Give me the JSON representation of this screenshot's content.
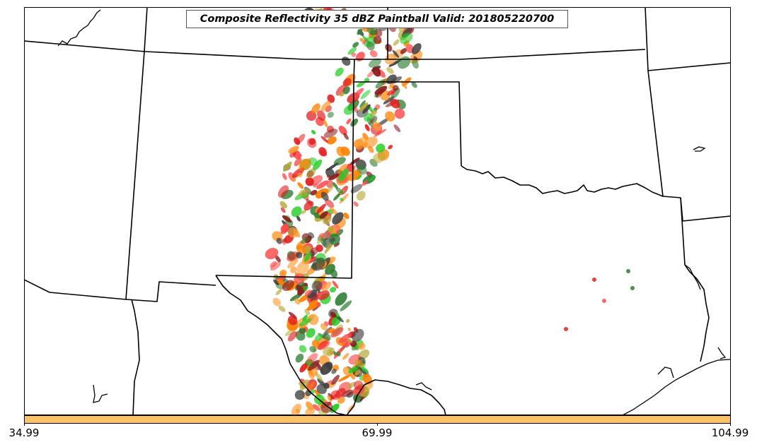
{
  "title": "Composite Reflectivity 35 dBZ Paintball Valid: 201805220700",
  "colorbar": {
    "color": "#ffc266",
    "tick_labels": [
      "34.99",
      "69.99",
      "104.99"
    ]
  },
  "map": {
    "background": "#ffffff",
    "boundary_color": "#000000",
    "features": [
      "state-borders",
      "coastline",
      "red-river"
    ]
  },
  "paintball_colors": [
    "#e02020",
    "#ff7f00",
    "#22cc22",
    "#b5a935",
    "#8b1a1a",
    "#2e7d32",
    "#ff4c4c",
    "#404040",
    "#ff9a2e"
  ]
}
